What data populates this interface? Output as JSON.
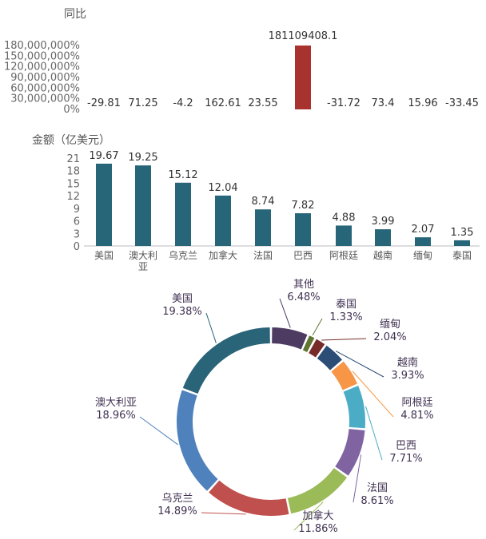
{
  "chart_data": [
    {
      "type": "bar",
      "title": "同比",
      "categories": [
        "美国",
        "澳大利亚",
        "乌克兰",
        "加拿大",
        "法国",
        "巴西",
        "阿根廷",
        "越南",
        "缅甸",
        "泰国"
      ],
      "values": [
        -29.81,
        71.25,
        -4.2,
        162.61,
        23.55,
        181109408.1,
        -31.72,
        73.4,
        15.96,
        -33.45
      ],
      "value_labels": [
        "-29.81",
        "71.25",
        "-4.2",
        "162.61",
        "23.55",
        "181109408.1",
        "-31.72",
        "73.4",
        "15.96",
        "-33.45"
      ],
      "ylabel": "同比",
      "yticks": [
        "0%",
        "30,000,000%",
        "60,000,000%",
        "90,000,000%",
        "120,000,000%",
        "150,000,000%",
        "180,000,000%"
      ],
      "ylim": [
        0,
        180000000
      ],
      "color": "#a8322d"
    },
    {
      "type": "bar",
      "title": "金额（亿美元）",
      "categories": [
        "美国",
        "澳大利亚",
        "乌克兰",
        "加拿大",
        "法国",
        "巴西",
        "阿根廷",
        "越南",
        "缅甸",
        "泰国"
      ],
      "values": [
        19.67,
        19.25,
        15.12,
        12.04,
        8.74,
        7.82,
        4.88,
        3.99,
        2.07,
        1.35
      ],
      "value_labels": [
        "19.67",
        "19.25",
        "15.12",
        "12.04",
        "8.74",
        "7.82",
        "4.88",
        "3.99",
        "2.07",
        "1.35"
      ],
      "ylabel": "金额（亿美元）",
      "yticks": [
        "0",
        "3",
        "6",
        "9",
        "12",
        "15",
        "18",
        "21"
      ],
      "ylim": [
        0,
        21
      ],
      "color": "#276678"
    },
    {
      "type": "pie",
      "donut": true,
      "labels": [
        "其他",
        "泰国",
        "缅甸",
        "越南",
        "阿根廷",
        "巴西",
        "法国",
        "加拿大",
        "乌克兰",
        "澳大利亚",
        "美国"
      ],
      "values": [
        6.48,
        1.33,
        2.04,
        3.93,
        4.81,
        7.71,
        8.61,
        11.86,
        14.89,
        18.96,
        19.38
      ],
      "pct_labels": [
        "6.48%",
        "1.33%",
        "2.04%",
        "3.93%",
        "4.81%",
        "7.71%",
        "8.61%",
        "11.86%",
        "14.89%",
        "18.96%",
        "19.38%"
      ],
      "colors": [
        "#4d3b62",
        "#5f7530",
        "#772c2a",
        "#2c4d75",
        "#f79646",
        "#4bacc6",
        "#8064a2",
        "#9bbb59",
        "#c0504d",
        "#4f81bd",
        "#2a6478"
      ]
    }
  ]
}
